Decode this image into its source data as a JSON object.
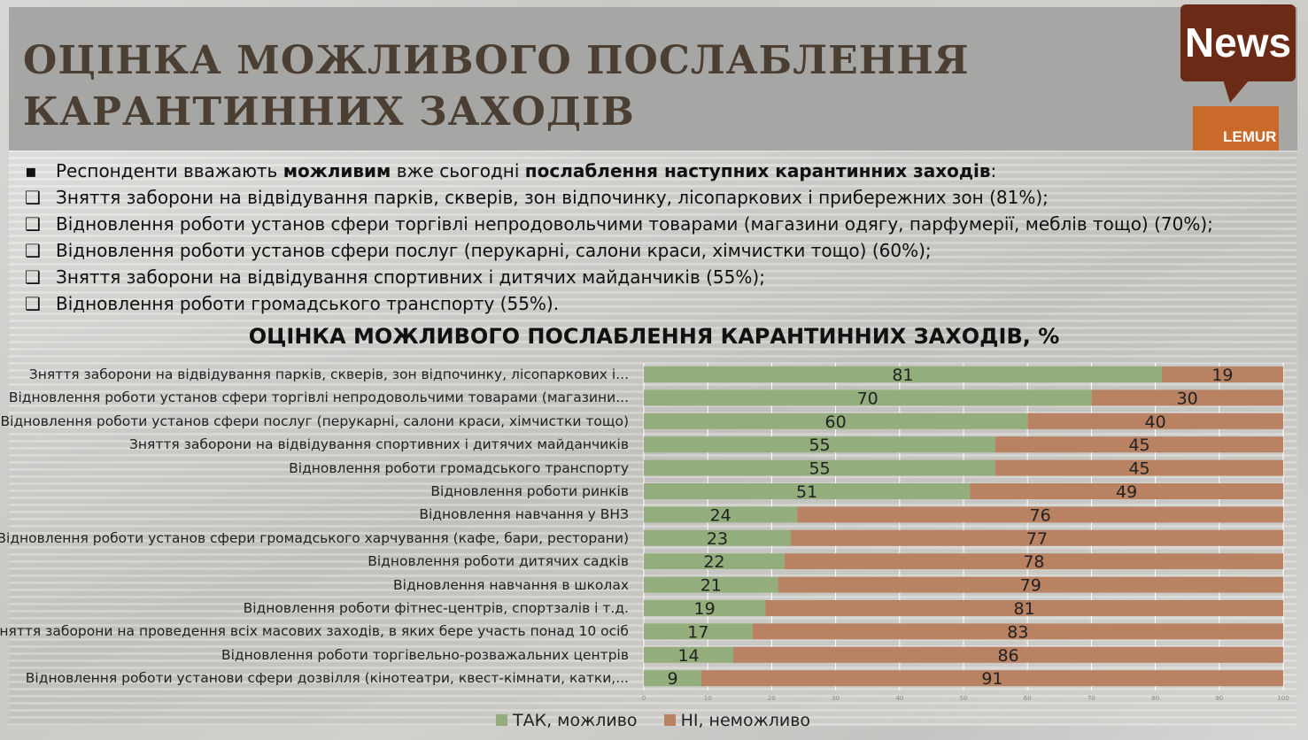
{
  "title": "ОЦІНКА МОЖЛИВОГО ПОСЛАБЛЕННЯ КАРАНТИННИХ ЗАХОДІВ",
  "logo": {
    "news": "News",
    "brand": "LEMUR"
  },
  "intro": {
    "pre": "Респонденти вважають ",
    "b1": "можливим",
    "mid": " вже сьогодні ",
    "b2": "послаблення наступних карантинних заходів",
    "post": ":"
  },
  "bullets": [
    "Зняття заборони на відвідування парків, скверів, зон відпочинку, лісопаркових і прибережних зон (81%);",
    "Відновлення роботи установ сфери торгівлі непродовольчими товарами (магазини одягу, парфумерії, меблів тощо) (70%);",
    "Відновлення роботи установ сфери послуг (перукарні, салони краси, хімчистки тощо) (60%);",
    "Зняття заборони на відвідування спортивних і дитячих майданчиків (55%);",
    "Відновлення роботи громадського транспорту (55%)."
  ],
  "chart_data": {
    "type": "bar",
    "stacked": true,
    "orientation": "horizontal",
    "title": "ОЦІНКА МОЖЛИВОГО ПОСЛАБЛЕННЯ КАРАНТИННИХ ЗАХОДІВ, %",
    "categories": [
      "Зняття заборони на відвідування парків, скверів, зон відпочинку, лісопаркових і...",
      "Відновлення роботи установ сфери торгівлі непродовольчими товарами (магазини...",
      "Відновлення роботи установ сфери послуг (перукарні, салони краси, хімчистки тощо)",
      "Зняття заборони на відвідування спортивних і дитячих майданчиків",
      "Відновлення роботи громадського транспорту",
      "Відновлення роботи ринків",
      "Відновлення навчання у ВНЗ",
      "Відновлення роботи установ сфери громадського харчування (кафе, бари, ресторани)",
      "Відновлення роботи дитячих садків",
      "Відновлення навчання в школах",
      "Відновлення роботи фітнес-центрів, спортзалів і т.д.",
      "Зняття заборони на проведення всіх масових заходів, в яких бере участь понад 10 осіб",
      "Відновлення роботи торгівельно-розважальних центрів",
      "Відновлення роботи установи сфери дозвілля (кінотеатри, квест-кімнати, катки,..."
    ],
    "series": [
      {
        "name": "ТАК, можливо",
        "color": "#93ae7c",
        "values": [
          81,
          70,
          60,
          55,
          55,
          51,
          24,
          23,
          22,
          21,
          19,
          17,
          14,
          9
        ]
      },
      {
        "name": "НІ, неможливо",
        "color": "#b98263",
        "values": [
          19,
          30,
          40,
          45,
          45,
          49,
          76,
          77,
          78,
          79,
          81,
          83,
          86,
          91
        ]
      }
    ],
    "xlim": [
      0,
      100
    ],
    "xticks": [
      "0",
      "10",
      "20",
      "30",
      "40",
      "50",
      "60",
      "70",
      "80",
      "90",
      "100"
    ],
    "grid": true,
    "legend": "bottom"
  }
}
